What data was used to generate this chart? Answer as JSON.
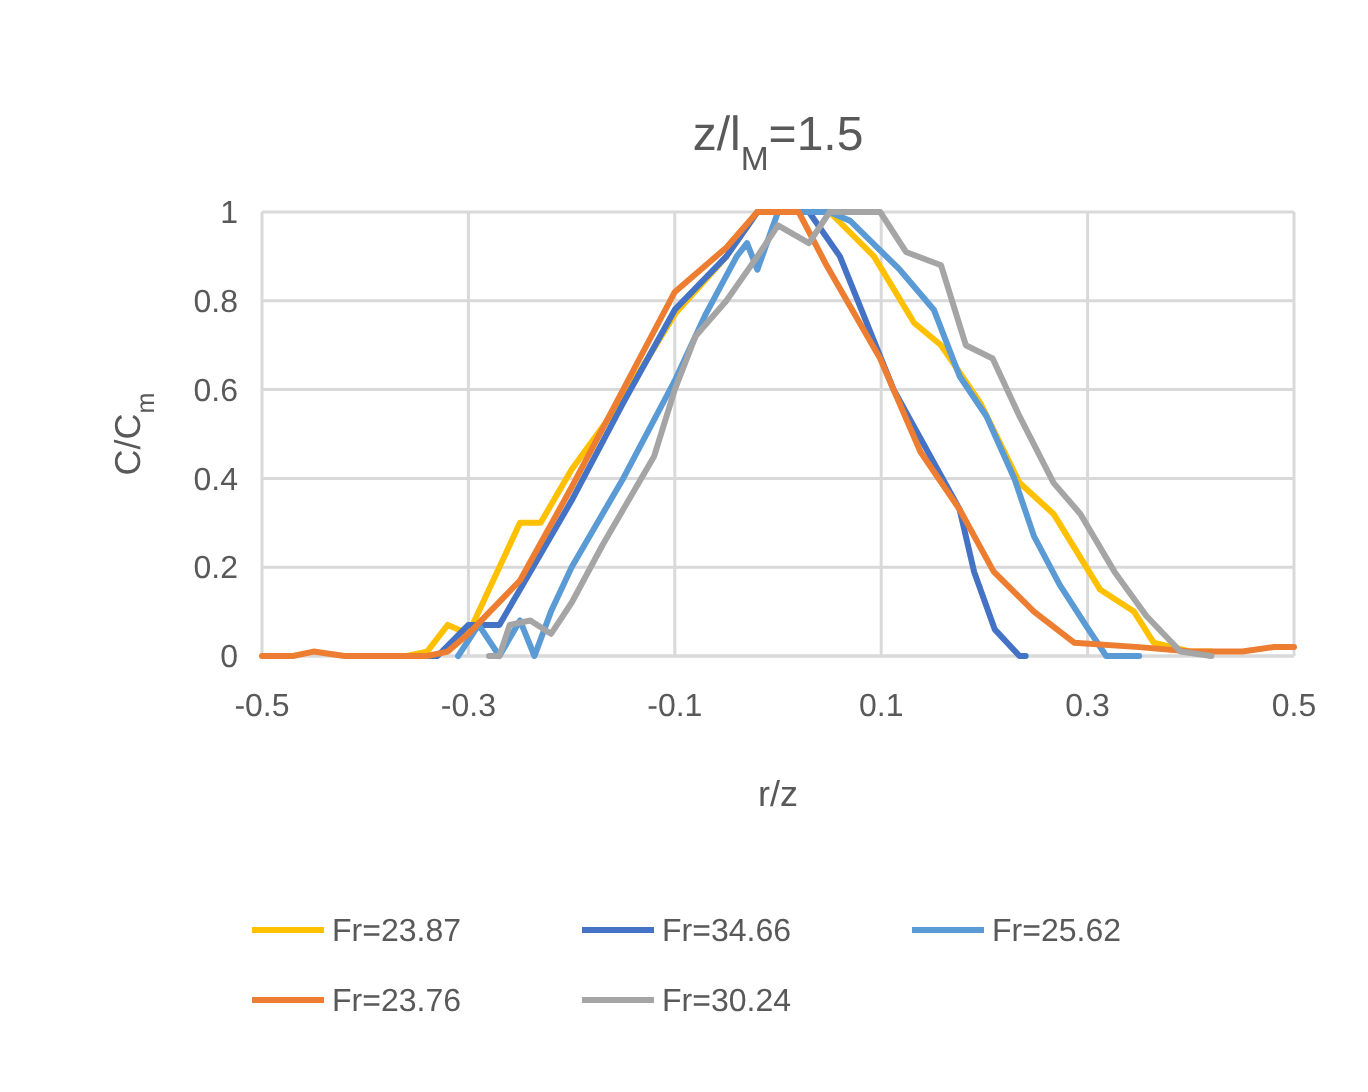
{
  "chart_data": {
    "type": "line",
    "title": "z/l$_{M}$=1.5",
    "xlabel": "r/z",
    "ylabel": "C/C$_{m}$",
    "xlim": [
      -0.5,
      0.5
    ],
    "xticks": [
      -0.5,
      -0.3,
      -0.1,
      0.1,
      0.3,
      0.5
    ],
    "ylim": [
      0,
      1
    ],
    "yticks": [
      0,
      0.2,
      0.4,
      0.6,
      0.8,
      1
    ],
    "grid": true,
    "legend": "bottom",
    "line_style": "solid",
    "series": [
      {
        "name": "Fr=23.87",
        "color": "#ffc000",
        "x": [
          -0.36,
          -0.34,
          -0.32,
          -0.3,
          -0.27,
          -0.25,
          -0.23,
          -0.2,
          -0.15,
          -0.1,
          -0.05,
          -0.02,
          0.05,
          0.093,
          0.132,
          0.158,
          0.196,
          0.234,
          0.267,
          0.312,
          0.345,
          0.364,
          0.4,
          0.42
        ],
        "values": [
          0,
          0.01,
          0.07,
          0.05,
          0.2,
          0.3,
          0.3,
          0.42,
          0.58,
          0.77,
          0.9,
          1,
          1,
          0.9,
          0.75,
          0.7,
          0.57,
          0.39,
          0.32,
          0.15,
          0.1,
          0.03,
          0.01,
          0.01
        ]
      },
      {
        "name": "Fr=34.66",
        "color": "#4472c4",
        "x": [
          -0.36,
          -0.33,
          -0.3,
          -0.27,
          -0.25,
          -0.2,
          -0.15,
          -0.1,
          -0.05,
          -0.02,
          0.03,
          0.06,
          0.112,
          0.176,
          0.19,
          0.21,
          0.234,
          0.24
        ],
        "values": [
          0,
          0,
          0.07,
          0.07,
          0.15,
          0.35,
          0.57,
          0.78,
          0.9,
          1,
          1,
          0.9,
          0.6,
          0.33,
          0.19,
          0.06,
          0,
          0
        ]
      },
      {
        "name": "Fr=25.62",
        "color": "#5b9bd5",
        "x": [
          -0.31,
          -0.29,
          -0.27,
          -0.25,
          -0.236,
          -0.22,
          -0.2,
          -0.15,
          -0.1,
          -0.07,
          -0.04,
          -0.03,
          -0.02,
          0,
          0.05,
          0.07,
          0.118,
          0.151,
          0.176,
          0.202,
          0.229,
          0.248,
          0.273,
          0.298,
          0.318,
          0.35
        ],
        "values": [
          0,
          0.07,
          0,
          0.08,
          0,
          0.1,
          0.2,
          0.4,
          0.62,
          0.77,
          0.9,
          0.93,
          0.87,
          1,
          1,
          0.98,
          0.87,
          0.78,
          0.63,
          0.54,
          0.4,
          0.27,
          0.16,
          0.07,
          0,
          0
        ]
      },
      {
        "name": "Fr=23.76",
        "color": "#ed7d31",
        "x": [
          -0.5,
          -0.47,
          -0.45,
          -0.42,
          -0.38,
          -0.34,
          -0.32,
          -0.3,
          -0.25,
          -0.2,
          -0.15,
          -0.1,
          -0.05,
          -0.02,
          0.02,
          0.047,
          0.099,
          0.138,
          0.176,
          0.209,
          0.248,
          0.287,
          0.35,
          0.4,
          0.45,
          0.48,
          0.5
        ],
        "values": [
          0,
          0,
          0.01,
          0,
          0,
          0,
          0.01,
          0.05,
          0.17,
          0.38,
          0.6,
          0.82,
          0.92,
          1,
          1,
          0.88,
          0.67,
          0.46,
          0.33,
          0.19,
          0.1,
          0.03,
          0.02,
          0.01,
          0.01,
          0.02,
          0.02
        ]
      },
      {
        "name": "Fr=30.24",
        "color": "#a5a5a5",
        "x": [
          -0.28,
          -0.27,
          -0.26,
          -0.24,
          -0.22,
          -0.2,
          -0.17,
          -0.15,
          -0.12,
          -0.1,
          -0.08,
          -0.05,
          -0.02,
          0,
          0.03,
          0.05,
          0.099,
          0.124,
          0.158,
          0.182,
          0.208,
          0.234,
          0.267,
          0.293,
          0.326,
          0.357,
          0.39,
          0.42
        ],
        "values": [
          0,
          0,
          0.07,
          0.08,
          0.05,
          0.12,
          0.25,
          0.33,
          0.45,
          0.6,
          0.72,
          0.8,
          0.9,
          0.97,
          0.93,
          1,
          1,
          0.91,
          0.88,
          0.7,
          0.67,
          0.54,
          0.39,
          0.32,
          0.19,
          0.09,
          0.01,
          0
        ]
      }
    ]
  }
}
